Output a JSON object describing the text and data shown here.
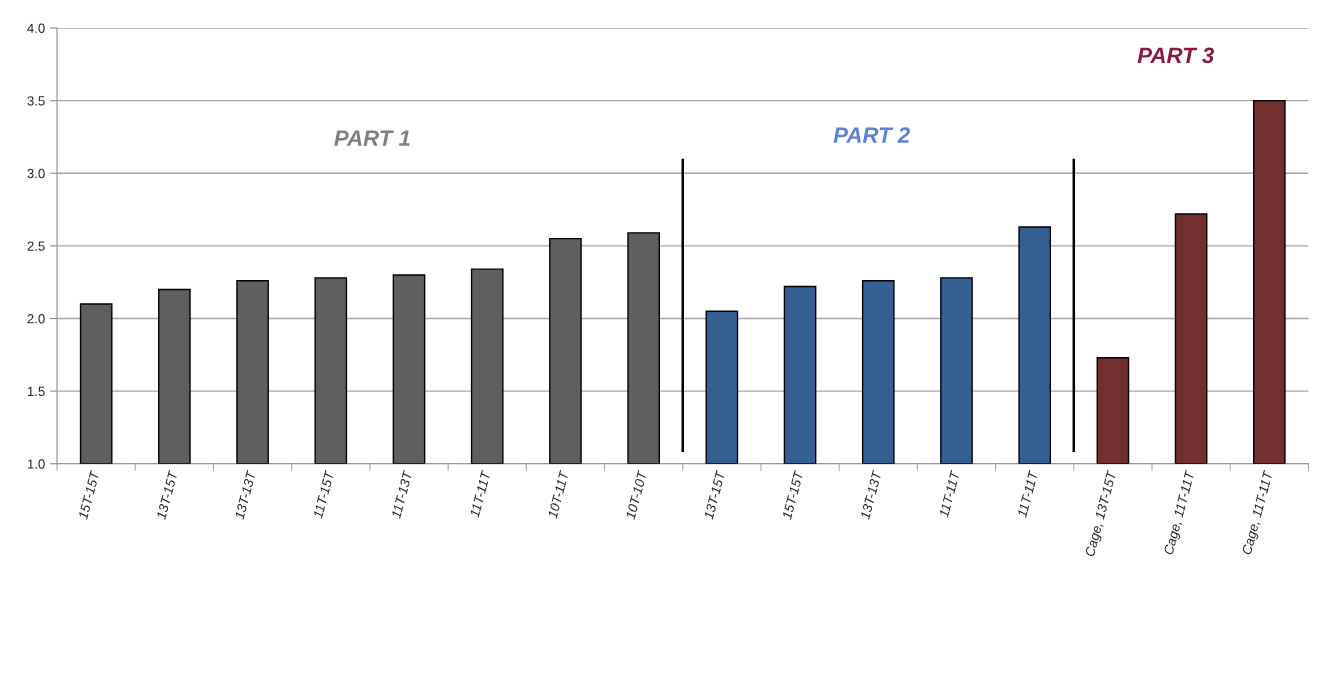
{
  "chart_data": {
    "type": "bar",
    "categories": [
      "15T-15T",
      "13T-15T",
      "13T-13T",
      "11T-15T",
      "11T-13T",
      "11T-11T",
      "10T-11T",
      "10T-10T",
      "13T-15T",
      "15T-15T",
      "13T-13T",
      "11T-11T",
      "11T-11T",
      "Cage, 13T-15T",
      "Cage, 11T-11T",
      "Cage, 11T-11T"
    ],
    "values": [
      2.1,
      2.2,
      2.26,
      2.28,
      2.3,
      2.34,
      2.55,
      2.59,
      2.05,
      2.22,
      2.26,
      2.28,
      2.63,
      1.73,
      2.72,
      3.5
    ],
    "colors": [
      "#5f5f5f",
      "#5f5f5f",
      "#5f5f5f",
      "#5f5f5f",
      "#5f5f5f",
      "#5f5f5f",
      "#5f5f5f",
      "#5f5f5f",
      "#376092",
      "#376092",
      "#376092",
      "#376092",
      "#376092",
      "#722f2f",
      "#722f2f",
      "#722f2f"
    ],
    "ylim": [
      1,
      4
    ],
    "yticks": [
      {
        "value": 1,
        "label": "1.0"
      },
      {
        "value": 1.5,
        "label": "1.5"
      },
      {
        "value": 2,
        "label": "2.0"
      },
      {
        "value": 2.5,
        "label": "2.5"
      },
      {
        "value": 3,
        "label": "3.0"
      },
      {
        "value": 3.5,
        "label": "3.5"
      },
      {
        "value": 4,
        "label": "4.0"
      }
    ],
    "grid": "y",
    "annotations": [
      "PART 1",
      "PART 2",
      "PART 3"
    ]
  }
}
